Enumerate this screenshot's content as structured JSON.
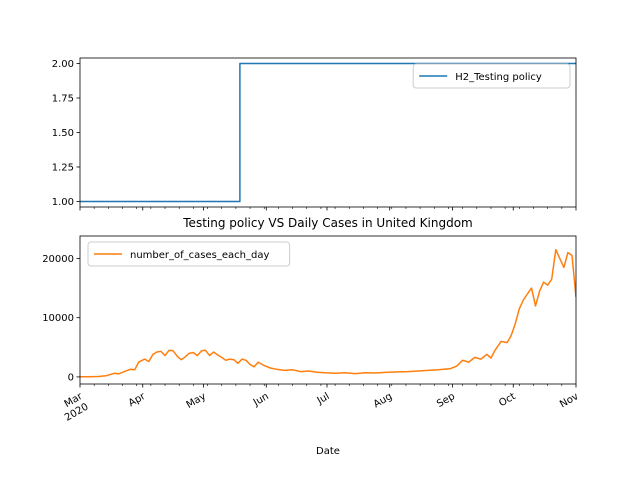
{
  "chart_data": [
    {
      "type": "line",
      "title": "",
      "xlabel": "",
      "ylabel": "",
      "x_range": [
        "2020-03-01",
        "2020-11-01"
      ],
      "ylim": [
        0.96,
        2.04
      ],
      "y_ticks": [
        1.0,
        1.25,
        1.5,
        1.75,
        2.0
      ],
      "y_tick_labels": [
        "1.00",
        "1.25",
        "1.50",
        "1.75",
        "2.00"
      ],
      "grid": false,
      "legend_position": "top-right",
      "series": [
        {
          "name": "H2_Testing policy",
          "color": "#1f77b4",
          "step": true,
          "points": [
            [
              "2020-03-01",
              1
            ],
            [
              "2020-05-18",
              1
            ],
            [
              "2020-05-19",
              2
            ],
            [
              "2020-11-01",
              2
            ]
          ]
        }
      ]
    },
    {
      "type": "line",
      "title": "Testing policy VS Daily Cases in United Kingdom",
      "xlabel": "Date",
      "ylabel": "",
      "x_range": [
        "2020-03-01",
        "2020-11-01"
      ],
      "ylim": [
        -1200,
        23800
      ],
      "y_ticks": [
        0,
        10000,
        20000
      ],
      "y_tick_labels": [
        "0",
        "10000",
        "20000"
      ],
      "x_ticks": [
        "2020-03-01",
        "2020-04-01",
        "2020-05-01",
        "2020-06-01",
        "2020-07-01",
        "2020-08-01",
        "2020-09-01",
        "2020-10-01",
        "2020-11-01"
      ],
      "x_tick_labels": [
        [
          "Mar",
          "2020"
        ],
        [
          "Apr"
        ],
        [
          "May"
        ],
        [
          "Jun"
        ],
        [
          "Jul"
        ],
        [
          "Aug"
        ],
        [
          "Sep"
        ],
        [
          "Oct"
        ],
        [
          "Nov"
        ]
      ],
      "grid": false,
      "legend_position": "top-left",
      "series": [
        {
          "name": "number_of_cases_each_day",
          "color": "#ff7f0e",
          "points": [
            [
              "2020-03-01",
              10
            ],
            [
              "2020-03-05",
              30
            ],
            [
              "2020-03-10",
              60
            ],
            [
              "2020-03-14",
              200
            ],
            [
              "2020-03-18",
              600
            ],
            [
              "2020-03-20",
              500
            ],
            [
              "2020-03-23",
              900
            ],
            [
              "2020-03-26",
              1300
            ],
            [
              "2020-03-28",
              1200
            ],
            [
              "2020-03-30",
              2500
            ],
            [
              "2020-04-02",
              3000
            ],
            [
              "2020-04-04",
              2600
            ],
            [
              "2020-04-06",
              3800
            ],
            [
              "2020-04-08",
              4200
            ],
            [
              "2020-04-10",
              4300
            ],
            [
              "2020-04-12",
              3600
            ],
            [
              "2020-04-14",
              4500
            ],
            [
              "2020-04-16",
              4400
            ],
            [
              "2020-04-18",
              3500
            ],
            [
              "2020-04-20",
              2900
            ],
            [
              "2020-04-22",
              3400
            ],
            [
              "2020-04-24",
              4000
            ],
            [
              "2020-04-26",
              4100
            ],
            [
              "2020-04-28",
              3600
            ],
            [
              "2020-04-30",
              4400
            ],
            [
              "2020-05-02",
              4500
            ],
            [
              "2020-05-04",
              3600
            ],
            [
              "2020-05-06",
              4200
            ],
            [
              "2020-05-08",
              3700
            ],
            [
              "2020-05-10",
              3300
            ],
            [
              "2020-05-12",
              2800
            ],
            [
              "2020-05-14",
              3000
            ],
            [
              "2020-05-16",
              2900
            ],
            [
              "2020-05-18",
              2300
            ],
            [
              "2020-05-20",
              3000
            ],
            [
              "2020-05-22",
              2800
            ],
            [
              "2020-05-24",
              2100
            ],
            [
              "2020-05-26",
              1700
            ],
            [
              "2020-05-28",
              2500
            ],
            [
              "2020-05-31",
              1900
            ],
            [
              "2020-06-03",
              1500
            ],
            [
              "2020-06-06",
              1300
            ],
            [
              "2020-06-10",
              1100
            ],
            [
              "2020-06-14",
              1200
            ],
            [
              "2020-06-18",
              900
            ],
            [
              "2020-06-22",
              1000
            ],
            [
              "2020-06-26",
              800
            ],
            [
              "2020-06-30",
              700
            ],
            [
              "2020-07-05",
              600
            ],
            [
              "2020-07-10",
              700
            ],
            [
              "2020-07-15",
              550
            ],
            [
              "2020-07-20",
              700
            ],
            [
              "2020-07-25",
              650
            ],
            [
              "2020-07-31",
              800
            ],
            [
              "2020-08-05",
              850
            ],
            [
              "2020-08-10",
              900
            ],
            [
              "2020-08-15",
              1000
            ],
            [
              "2020-08-20",
              1100
            ],
            [
              "2020-08-25",
              1200
            ],
            [
              "2020-08-31",
              1400
            ],
            [
              "2020-09-03",
              1800
            ],
            [
              "2020-09-06",
              2800
            ],
            [
              "2020-09-09",
              2500
            ],
            [
              "2020-09-12",
              3300
            ],
            [
              "2020-09-15",
              3000
            ],
            [
              "2020-09-18",
              3800
            ],
            [
              "2020-09-20",
              3200
            ],
            [
              "2020-09-22",
              4500
            ],
            [
              "2020-09-25",
              6000
            ],
            [
              "2020-09-28",
              5800
            ],
            [
              "2020-09-30",
              7000
            ],
            [
              "2020-10-02",
              9000
            ],
            [
              "2020-10-04",
              11500
            ],
            [
              "2020-10-06",
              13000
            ],
            [
              "2020-10-08",
              14000
            ],
            [
              "2020-10-10",
              15000
            ],
            [
              "2020-10-12",
              12000
            ],
            [
              "2020-10-14",
              14500
            ],
            [
              "2020-10-16",
              16000
            ],
            [
              "2020-10-18",
              15500
            ],
            [
              "2020-10-20",
              16500
            ],
            [
              "2020-10-22",
              21500
            ],
            [
              "2020-10-24",
              20000
            ],
            [
              "2020-10-26",
              18500
            ],
            [
              "2020-10-28",
              21000
            ],
            [
              "2020-10-30",
              20500
            ],
            [
              "2020-11-01",
              13500
            ]
          ]
        }
      ]
    }
  ]
}
